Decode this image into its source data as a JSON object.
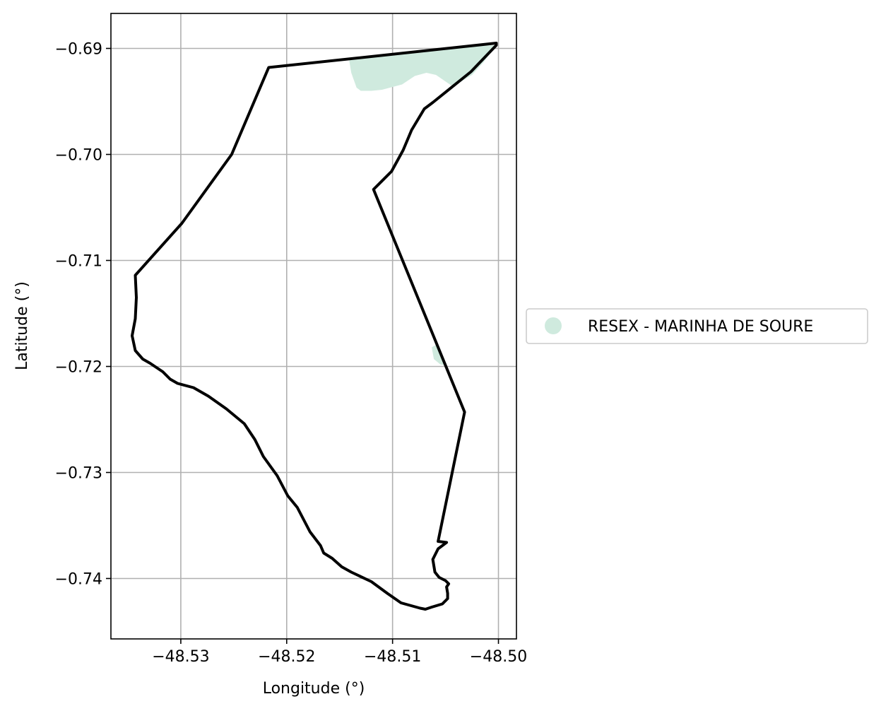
{
  "chart_data": {
    "type": "map",
    "xlabel": "Longitude (°)",
    "ylabel": "Latitude (°)",
    "xlim": [
      -48.5366,
      -48.4983
    ],
    "ylim": [
      -0.7457,
      -0.6867
    ],
    "grid": true,
    "x_ticks": [
      -48.53,
      -48.52,
      -48.51,
      -48.5
    ],
    "x_tick_labels": [
      "−48.53",
      "−48.52",
      "−48.51",
      "−48.50"
    ],
    "y_ticks": [
      -0.69,
      -0.7,
      -0.71,
      -0.72,
      -0.73,
      -0.74
    ],
    "y_tick_labels": [
      "−0.69",
      "−0.70",
      "−0.71",
      "−0.72",
      "−0.73",
      "−0.74"
    ],
    "legend": {
      "placement": "center-right-outside",
      "entries": [
        {
          "label": "RESEX - MARINHA DE SOURE",
          "color": "#cfeade",
          "marker": "circle"
        }
      ]
    },
    "layers": [
      {
        "name": "RESEX - MARINHA DE SOURE",
        "kind": "fill",
        "color": "#cfeade",
        "polygons": [
          [
            [
              -48.5141,
              -0.6911
            ],
            [
              -48.5139,
              -0.6923
            ],
            [
              -48.5134,
              -0.6937
            ],
            [
              -48.513,
              -0.694
            ],
            [
              -48.512,
              -0.694
            ],
            [
              -48.511,
              -0.6939
            ],
            [
              -48.5091,
              -0.6934
            ],
            [
              -48.5079,
              -0.6926
            ],
            [
              -48.5068,
              -0.6923
            ],
            [
              -48.5059,
              -0.6925
            ],
            [
              -48.5043,
              -0.6936
            ],
            [
              -48.5025,
              -0.6925
            ],
            [
              -48.5014,
              -0.6913
            ],
            [
              -48.5002,
              -0.6897
            ],
            [
              -48.505,
              -0.6899
            ],
            [
              -48.51,
              -0.6905
            ],
            [
              -48.5141,
              -0.6911
            ]
          ],
          [
            [
              -48.5063,
              -0.7182
            ],
            [
              -48.5058,
              -0.7179
            ],
            [
              -48.5053,
              -0.719
            ],
            [
              -48.505,
              -0.7199
            ],
            [
              -48.5055,
              -0.7198
            ],
            [
              -48.5061,
              -0.7193
            ],
            [
              -48.5063,
              -0.7182
            ]
          ]
        ]
      },
      {
        "kind": "outline",
        "color": "#000000",
        "points": [
          [
            -48.5002,
            -0.6895
          ],
          [
            -48.5002,
            -0.6897
          ],
          [
            -48.5026,
            -0.6922
          ],
          [
            -48.5062,
            -0.6951
          ],
          [
            -48.507,
            -0.6957
          ],
          [
            -48.5082,
            -0.6977
          ],
          [
            -48.509,
            -0.6996
          ],
          [
            -48.5101,
            -0.7016
          ],
          [
            -48.5118,
            -0.7033
          ],
          [
            -48.5032,
            -0.7243
          ],
          [
            -48.5057,
            -0.7365
          ],
          [
            -48.5049,
            -0.7366
          ],
          [
            -48.5057,
            -0.7372
          ],
          [
            -48.5062,
            -0.7382
          ],
          [
            -48.506,
            -0.7394
          ],
          [
            -48.5056,
            -0.7399
          ],
          [
            -48.505,
            -0.7402
          ],
          [
            -48.5047,
            -0.7405
          ],
          [
            -48.5049,
            -0.7408
          ],
          [
            -48.5048,
            -0.7414
          ],
          [
            -48.5048,
            -0.7419
          ],
          [
            -48.5053,
            -0.7424
          ],
          [
            -48.5063,
            -0.7427
          ],
          [
            -48.5069,
            -0.7429
          ],
          [
            -48.5074,
            -0.7428
          ],
          [
            -48.5092,
            -0.7423
          ],
          [
            -48.5105,
            -0.7414
          ],
          [
            -48.512,
            -0.7403
          ],
          [
            -48.5139,
            -0.7394
          ],
          [
            -48.5148,
            -0.7389
          ],
          [
            -48.5157,
            -0.7381
          ],
          [
            -48.5165,
            -0.7376
          ],
          [
            -48.5168,
            -0.7369
          ],
          [
            -48.5178,
            -0.7356
          ],
          [
            -48.519,
            -0.7333
          ],
          [
            -48.5199,
            -0.7322
          ],
          [
            -48.5209,
            -0.7303
          ],
          [
            -48.5222,
            -0.7285
          ],
          [
            -48.523,
            -0.7269
          ],
          [
            -48.524,
            -0.7254
          ],
          [
            -48.5257,
            -0.724
          ],
          [
            -48.5274,
            -0.7228
          ],
          [
            -48.5288,
            -0.722
          ],
          [
            -48.5303,
            -0.7216
          ],
          [
            -48.531,
            -0.7212
          ],
          [
            -48.5317,
            -0.7205
          ],
          [
            -48.5329,
            -0.7197
          ],
          [
            -48.5336,
            -0.7193
          ],
          [
            -48.5343,
            -0.7185
          ],
          [
            -48.5346,
            -0.7171
          ],
          [
            -48.5343,
            -0.7155
          ],
          [
            -48.5342,
            -0.7135
          ],
          [
            -48.5343,
            -0.7114
          ],
          [
            -48.5299,
            -0.7065
          ],
          [
            -48.5252,
            -0.7
          ],
          [
            -48.5217,
            -0.6918
          ],
          [
            -48.5002,
            -0.6895
          ]
        ]
      }
    ]
  }
}
